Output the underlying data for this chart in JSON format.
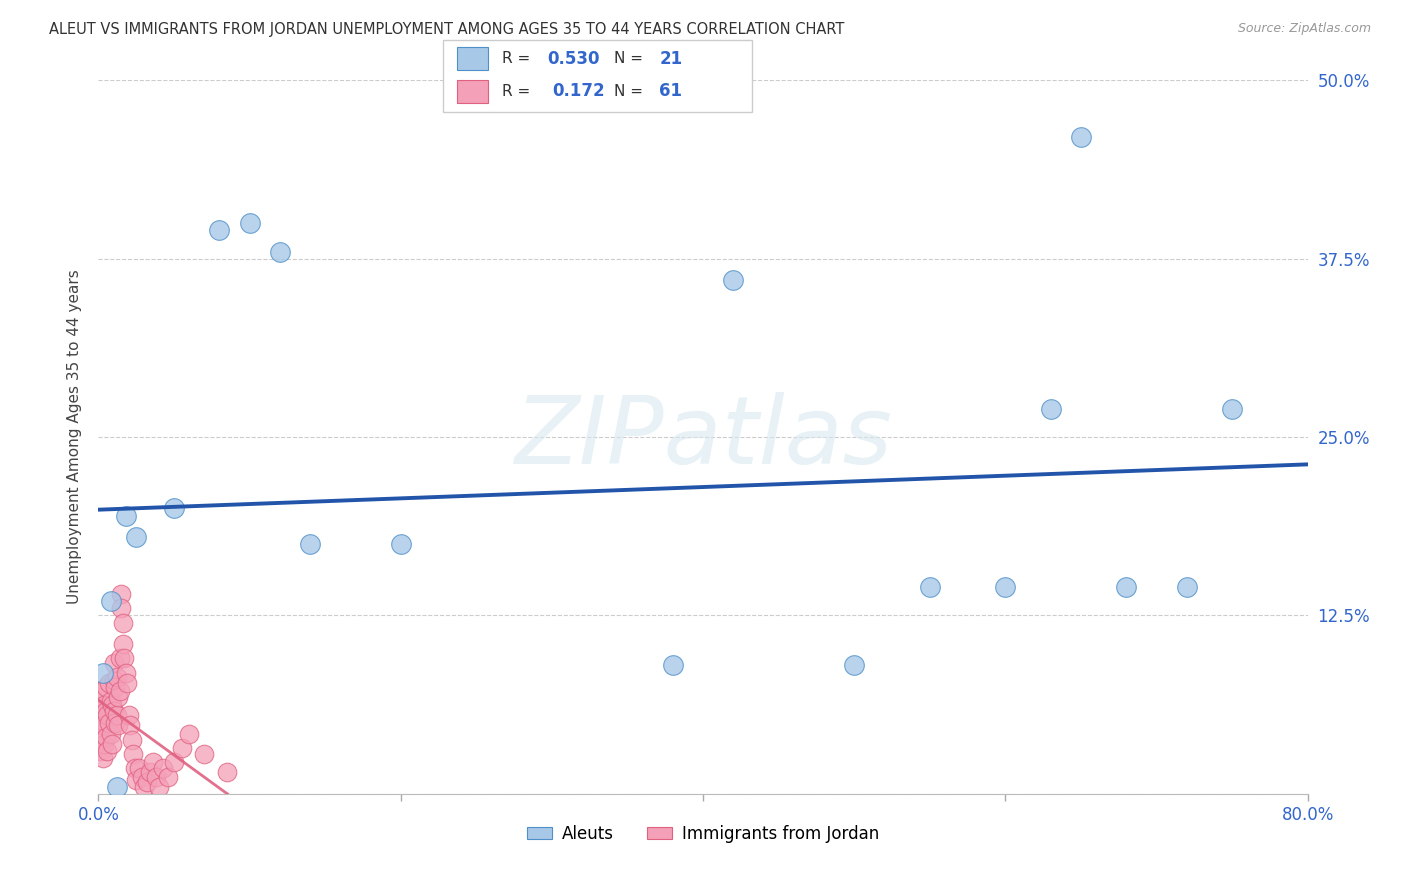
{
  "title": "ALEUT VS IMMIGRANTS FROM JORDAN UNEMPLOYMENT AMONG AGES 35 TO 44 YEARS CORRELATION CHART",
  "source": "Source: ZipAtlas.com",
  "ylabel": "Unemployment Among Ages 35 to 44 years",
  "xlim": [
    0.0,
    0.8
  ],
  "ylim": [
    0.0,
    0.5
  ],
  "xticks": [
    0.0,
    0.2,
    0.4,
    0.6,
    0.8
  ],
  "yticks": [
    0.0,
    0.125,
    0.25,
    0.375,
    0.5
  ],
  "xticklabels": [
    "0.0%",
    "",
    "",
    "",
    "80.0%"
  ],
  "yticklabels_right": [
    "",
    "12.5%",
    "25.0%",
    "37.5%",
    "50.0%"
  ],
  "aleut_color": "#a8c8e8",
  "jordan_color": "#f4a0b8",
  "aleut_edge_color": "#5090c8",
  "jordan_edge_color": "#e06080",
  "aleut_line_color": "#2255aa",
  "jordan_line_color": "#e06080",
  "aleut_R": 0.53,
  "aleut_N": 21,
  "jordan_R": 0.172,
  "jordan_N": 61,
  "legend_label_aleuts": "Aleuts",
  "legend_label_jordan": "Immigrants from Jordan",
  "watermark": "ZIPatlas",
  "background_color": "#ffffff",
  "grid_color": "#cccccc",
  "aleuts_x": [
    0.003,
    0.008,
    0.012,
    0.018,
    0.025,
    0.05,
    0.08,
    0.1,
    0.12,
    0.14,
    0.2,
    0.38,
    0.42,
    0.5,
    0.55,
    0.6,
    0.63,
    0.65,
    0.68,
    0.72,
    0.75
  ],
  "aleuts_y": [
    0.085,
    0.135,
    0.005,
    0.195,
    0.18,
    0.2,
    0.395,
    0.4,
    0.38,
    0.175,
    0.175,
    0.09,
    0.36,
    0.09,
    0.145,
    0.145,
    0.27,
    0.46,
    0.145,
    0.145,
    0.27
  ],
  "jordan_x": [
    0.0,
    0.001,
    0.001,
    0.002,
    0.002,
    0.002,
    0.003,
    0.003,
    0.003,
    0.004,
    0.004,
    0.005,
    0.005,
    0.005,
    0.006,
    0.006,
    0.007,
    0.007,
    0.008,
    0.008,
    0.009,
    0.009,
    0.01,
    0.01,
    0.01,
    0.011,
    0.011,
    0.012,
    0.012,
    0.013,
    0.013,
    0.014,
    0.014,
    0.015,
    0.015,
    0.016,
    0.016,
    0.017,
    0.018,
    0.019,
    0.02,
    0.021,
    0.022,
    0.023,
    0.024,
    0.025,
    0.027,
    0.029,
    0.03,
    0.032,
    0.034,
    0.036,
    0.038,
    0.04,
    0.043,
    0.046,
    0.05,
    0.055,
    0.06,
    0.07,
    0.085
  ],
  "jordan_y": [
    0.045,
    0.038,
    0.06,
    0.03,
    0.052,
    0.068,
    0.025,
    0.048,
    0.072,
    0.035,
    0.062,
    0.04,
    0.058,
    0.075,
    0.03,
    0.055,
    0.05,
    0.078,
    0.042,
    0.065,
    0.035,
    0.062,
    0.058,
    0.08,
    0.092,
    0.05,
    0.075,
    0.055,
    0.082,
    0.048,
    0.068,
    0.072,
    0.095,
    0.14,
    0.13,
    0.12,
    0.105,
    0.095,
    0.085,
    0.078,
    0.055,
    0.048,
    0.038,
    0.028,
    0.018,
    0.01,
    0.018,
    0.012,
    0.005,
    0.008,
    0.015,
    0.022,
    0.012,
    0.005,
    0.018,
    0.012,
    0.022,
    0.032,
    0.042,
    0.028,
    0.015
  ]
}
